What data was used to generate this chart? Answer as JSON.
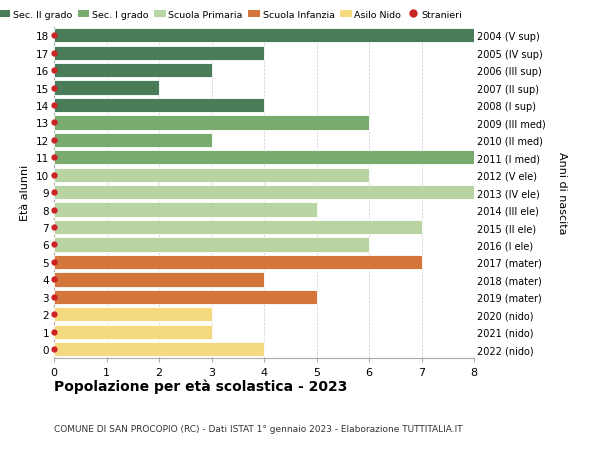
{
  "ages": [
    18,
    17,
    16,
    15,
    14,
    13,
    12,
    11,
    10,
    9,
    8,
    7,
    6,
    5,
    4,
    3,
    2,
    1,
    0
  ],
  "years": [
    "2004 (V sup)",
    "2005 (IV sup)",
    "2006 (III sup)",
    "2007 (II sup)",
    "2008 (I sup)",
    "2009 (III med)",
    "2010 (II med)",
    "2011 (I med)",
    "2012 (V ele)",
    "2013 (IV ele)",
    "2014 (III ele)",
    "2015 (II ele)",
    "2016 (I ele)",
    "2017 (mater)",
    "2018 (mater)",
    "2019 (mater)",
    "2020 (nido)",
    "2021 (nido)",
    "2022 (nido)"
  ],
  "values": [
    8,
    4,
    3,
    2,
    4,
    6,
    3,
    8,
    6,
    8,
    5,
    7,
    6,
    7,
    4,
    5,
    3,
    3,
    4
  ],
  "colors": [
    "#4a7c59",
    "#4a7c59",
    "#4a7c59",
    "#4a7c59",
    "#4a7c59",
    "#7aab6e",
    "#7aab6e",
    "#7aab6e",
    "#b8d4a3",
    "#b8d4a3",
    "#b8d4a3",
    "#b8d4a3",
    "#b8d4a3",
    "#d4763b",
    "#d4763b",
    "#d4763b",
    "#f5d97e",
    "#f5d97e",
    "#f5d97e"
  ],
  "legend_labels": [
    "Sec. II grado",
    "Sec. I grado",
    "Scuola Primaria",
    "Scuola Infanzia",
    "Asilo Nido",
    "Stranieri"
  ],
  "legend_colors": [
    "#4a7c59",
    "#7aab6e",
    "#b8d4a3",
    "#d4763b",
    "#f5d97e",
    "#cc2222"
  ],
  "stranieri_dot_color": "#cc2222",
  "title": "Popolazione per età scolastica - 2023",
  "subtitle": "COMUNE DI SAN PROCOPIO (RC) - Dati ISTAT 1° gennaio 2023 - Elaborazione TUTTITALIA.IT",
  "ylabel": "Età alunni",
  "right_label": "Anni di nascita",
  "xlim": [
    0,
    8
  ],
  "xticks": [
    0,
    1,
    2,
    3,
    4,
    5,
    6,
    7,
    8
  ],
  "background_color": "#ffffff",
  "grid_color": "#cccccc"
}
